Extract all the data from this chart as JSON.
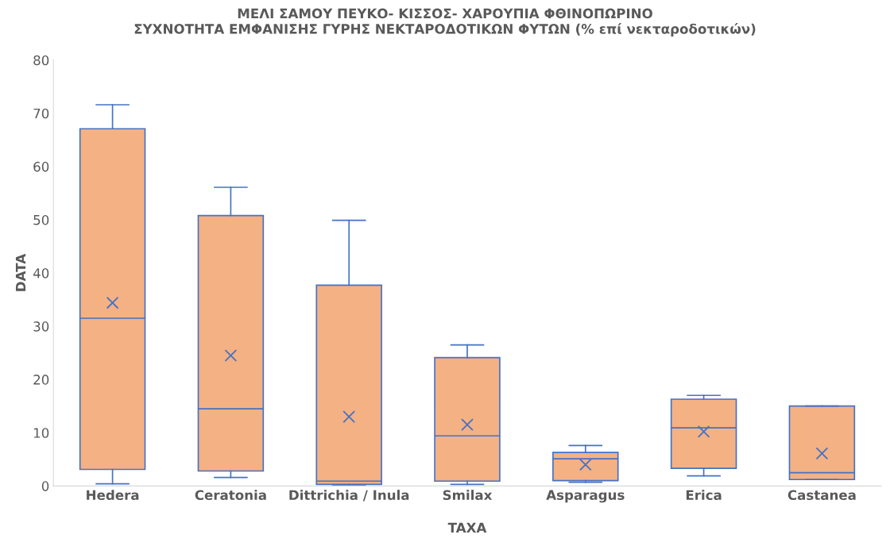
{
  "chart_data": {
    "type": "box",
    "title": "ΜΕΛΙ ΣΑΜΟΥ ΠΕΥΚΟ- ΚΙΣΣΟΣ- ΧΑΡΟΥΠΙΑ ΦΘΙΝΟΠΩΡΙΝΟ\nΣΥΧΝΟΤΗΤΑ ΕΜΦΑΝΙΣΗΣ ΓΥΡΗΣ ΝΕΚΤΑΡΟΔΟΤΙΚΩΝ ΦΥΤΩΝ (% επί νεκταροδοτικών)",
    "xlabel": "TAXA",
    "ylabel": "DATA",
    "categories": [
      "Hedera",
      "Ceratonia",
      "Dittrichia / Inula",
      "Smilax",
      "Asparagus",
      "Erica",
      "Castanea"
    ],
    "series": [
      {
        "color": "#f4b183",
        "boxes": [
          {
            "low": 0.4,
            "q1": 3.1,
            "median": 31.5,
            "q3": 67.1,
            "high": 71.6,
            "mean": 34.4
          },
          {
            "low": 1.6,
            "q1": 2.8,
            "median": 14.5,
            "q3": 50.8,
            "high": 56.1,
            "mean": 24.5
          },
          {
            "low": 0.1,
            "q1": 0.3,
            "median": 0.9,
            "q3": 37.7,
            "high": 49.9,
            "mean": 13.0
          },
          {
            "low": 0.3,
            "q1": 0.9,
            "median": 9.4,
            "q3": 24.1,
            "high": 26.5,
            "mean": 11.5
          },
          {
            "low": 0.7,
            "q1": 1.0,
            "median": 5.1,
            "q3": 6.3,
            "high": 7.6,
            "mean": 4.0
          },
          {
            "low": 1.9,
            "q1": 3.3,
            "median": 10.9,
            "q3": 16.3,
            "high": 17.0,
            "mean": 10.2
          },
          {
            "low": 1.2,
            "q1": 1.2,
            "median": 2.5,
            "q3": 15.0,
            "high": 15.0,
            "mean": 6.1
          }
        ]
      }
    ],
    "ylim": [
      0,
      80
    ],
    "yticks": [
      0,
      10,
      20,
      30,
      40,
      50,
      60,
      70,
      80
    ],
    "grid": false,
    "legend": false
  }
}
